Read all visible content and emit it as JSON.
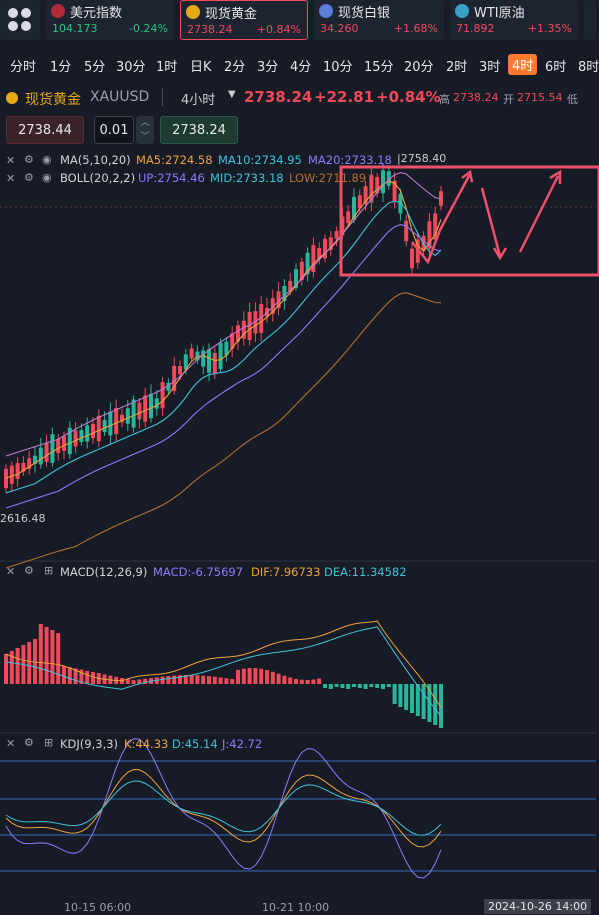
{
  "tickers": [
    {
      "name": "美元指数",
      "price": "104.173",
      "change": "-0.24%",
      "color": "#2ec27e",
      "icon": "us-flag-icon",
      "icon_color": "#c0392b"
    },
    {
      "name": "现货黄金",
      "price": "2738.24",
      "change": "+0.84%",
      "color": "#f04a5a",
      "icon": "gold-icon",
      "icon_color": "#e6a817"
    },
    {
      "name": "现货白银",
      "price": "34.260",
      "change": "+1.68%",
      "color": "#f04a5a",
      "icon": "silver-icon",
      "icon_color": "#5b7fd6"
    },
    {
      "name": "WTI原油",
      "price": "71.892",
      "change": "+1.35%",
      "color": "#f04a5a",
      "icon": "oil-icon",
      "icon_color": "#3aa0c8"
    }
  ],
  "periods": [
    "分时",
    "1分",
    "5分",
    "30分",
    "1时",
    "日K",
    "2分",
    "3分",
    "4分",
    "10分",
    "15分",
    "20分",
    "2时",
    "3时",
    "4时",
    "6时",
    "8时"
  ],
  "active_period": "4时",
  "symbol": {
    "name": "现货黄金",
    "code": "XAUUSD",
    "interval": "4小时",
    "price": "2738.24",
    "change": "+22.81",
    "pct": "+0.84%",
    "high_label": "高",
    "high": "2738.24",
    "open_label": "开",
    "open": "2715.54",
    "low_label": "低"
  },
  "trade": {
    "sell": "2738.44",
    "lot": "0.01",
    "buy": "2738.24"
  },
  "indicators": {
    "ma": {
      "label": "MA(5,10,20)",
      "ma5": "MA5:2724.58",
      "ma10": "MA10:2734.95",
      "ma20": "MA20:2733.18"
    },
    "boll": {
      "label": "BOLL(20,2,2)",
      "up": "UP:2754.46",
      "mid": "MID:2733.18",
      "low": "LOW:2711.89"
    },
    "macd": {
      "label": "MACD(12,26,9)",
      "macd": "MACD:-6.75697",
      "dif": "DIF:7.96733",
      "dea": "DEA:11.34582"
    },
    "kdj": {
      "label": "KDJ(9,3,3)",
      "k": "K:44.33",
      "d": "D:45.14",
      "j": "J:42.72"
    }
  },
  "chart_labels": {
    "max": "2758.40",
    "min": "2616.48"
  },
  "time_labels": {
    "t1": "10-15 06:00",
    "t2": "10-21 10:00",
    "t3": "2024-10-26 14:00"
  },
  "colors": {
    "up": "#f04a5a",
    "down": "#26b69a",
    "ma5": "#f0a23c",
    "ma10": "#3fc3d8",
    "ma20": "#8a7cff",
    "boll_low": "#b5702e",
    "accent": "#ff7a2e"
  }
}
